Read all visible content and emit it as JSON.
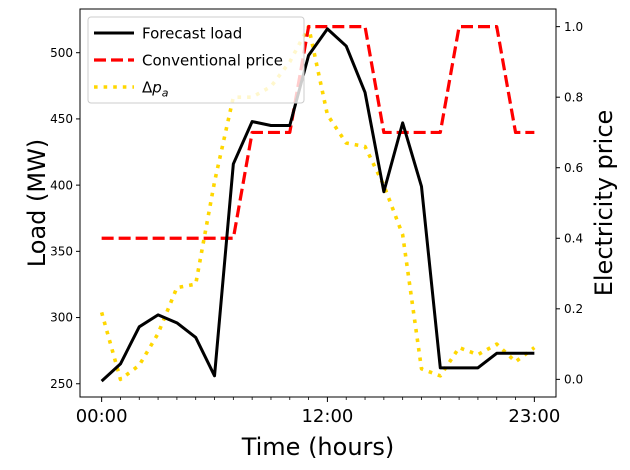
{
  "chart_data": {
    "type": "line",
    "xlabel": "Time (hours)",
    "ylabel_left": "Load (MW)",
    "ylabel_right": "Electricity price",
    "x_ticks": [
      {
        "value": 0,
        "label": "00:00"
      },
      {
        "value": 12,
        "label": "12:00"
      },
      {
        "value": 23,
        "label": "23:00"
      }
    ],
    "x_minor_ticks": [
      1,
      2,
      3,
      4,
      5,
      6,
      7,
      8,
      9,
      10,
      11,
      13,
      14,
      15,
      16,
      17,
      18,
      19,
      20,
      21,
      22
    ],
    "xlim": [
      -1.15,
      24.15
    ],
    "ylim_left": [
      240,
      533
    ],
    "yticks_left": [
      "250",
      "300",
      "350",
      "400",
      "450",
      "500"
    ],
    "ylim_right": [
      -0.05,
      1.05
    ],
    "yticks_right": [
      "0.0",
      "0.2",
      "0.4",
      "0.6",
      "0.8",
      "1.0"
    ],
    "x": [
      0,
      1,
      2,
      3,
      4,
      5,
      6,
      7,
      8,
      9,
      10,
      11,
      12,
      13,
      14,
      15,
      16,
      17,
      18,
      19,
      20,
      21,
      22,
      23
    ],
    "series": [
      {
        "name": "Forecast load",
        "axis": "left",
        "color": "#000000",
        "style": "solid",
        "values": [
          252,
          265,
          293,
          302,
          296,
          285,
          256,
          416,
          448,
          445,
          445,
          498,
          518,
          505,
          470,
          395,
          447,
          399,
          262,
          262,
          262,
          273,
          273,
          273
        ]
      },
      {
        "name": "Conventional price",
        "axis": "right",
        "color": "#ff0000",
        "style": "dashed",
        "values": [
          0.4,
          0.4,
          0.4,
          0.4,
          0.4,
          0.4,
          0.4,
          0.4,
          0.7,
          0.7,
          0.7,
          1.0,
          1.0,
          1.0,
          1.0,
          0.7,
          0.7,
          0.7,
          0.7,
          1.0,
          1.0,
          1.0,
          0.7,
          0.7
        ]
      },
      {
        "name": "Δp",
        "name_subscript": "a",
        "axis": "right",
        "color": "#ffd700",
        "style": "dotted",
        "values": [
          0.19,
          0.0,
          0.04,
          0.13,
          0.26,
          0.27,
          0.56,
          0.8,
          0.8,
          0.83,
          0.9,
          1.0,
          0.75,
          0.67,
          0.66,
          0.55,
          0.41,
          0.03,
          0.01,
          0.09,
          0.07,
          0.1,
          0.05,
          0.09
        ]
      }
    ],
    "legend_position": "top-left"
  }
}
